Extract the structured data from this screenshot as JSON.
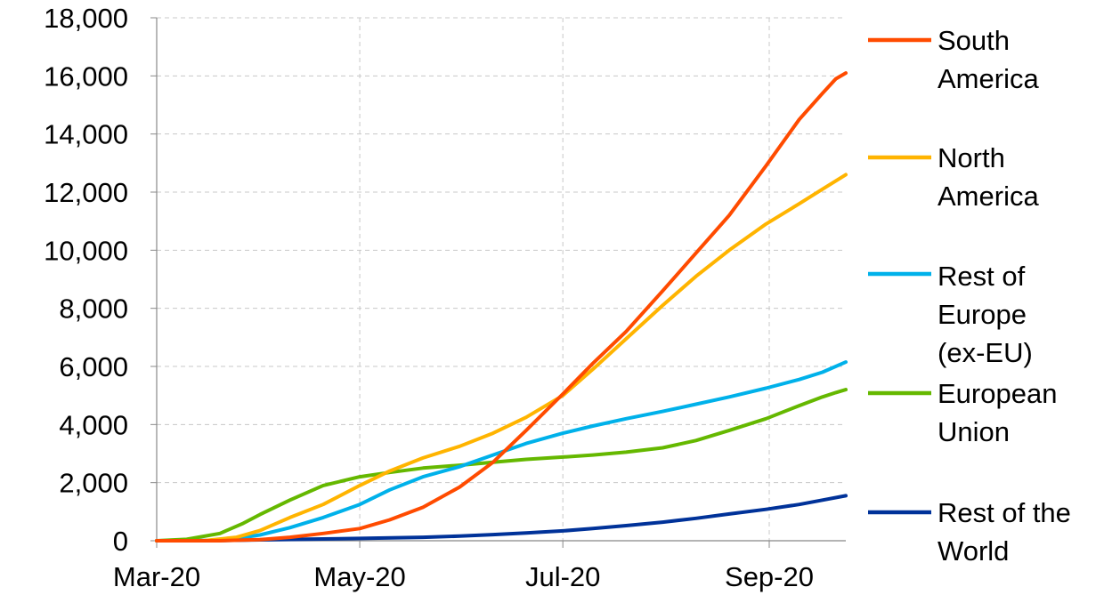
{
  "chart_data": {
    "type": "line",
    "title": "",
    "xlabel": "",
    "ylabel": "",
    "x_range": [
      "2020-03-01",
      "2020-09-24"
    ],
    "ylim": [
      0,
      18000
    ],
    "yticks": [
      0,
      2000,
      4000,
      6000,
      8000,
      10000,
      12000,
      14000,
      16000,
      18000
    ],
    "ytick_labels": [
      "0",
      "2,000",
      "4,000",
      "6,000",
      "8,000",
      "10,000",
      "12,000",
      "14,000",
      "16,000",
      "18,000"
    ],
    "xticks": [
      {
        "date": "2020-03-01",
        "label": "Mar-20"
      },
      {
        "date": "2020-05-01",
        "label": "May-20"
      },
      {
        "date": "2020-07-01",
        "label": "Jul-20"
      },
      {
        "date": "2020-09-01",
        "label": "Sep-20"
      }
    ],
    "grid": true,
    "legend_position": "right",
    "series": [
      {
        "name": "South America",
        "label_lines": [
          "South",
          "America"
        ],
        "color": "#FF4B00",
        "points": [
          [
            "2020-03-01",
            0
          ],
          [
            "2020-03-20",
            0
          ],
          [
            "2020-04-01",
            40
          ],
          [
            "2020-04-10",
            120
          ],
          [
            "2020-04-20",
            250
          ],
          [
            "2020-05-01",
            420
          ],
          [
            "2020-05-10",
            720
          ],
          [
            "2020-05-20",
            1150
          ],
          [
            "2020-05-31",
            1850
          ],
          [
            "2020-06-10",
            2700
          ],
          [
            "2020-06-20",
            3800
          ],
          [
            "2020-07-01",
            5050
          ],
          [
            "2020-07-10",
            6100
          ],
          [
            "2020-07-20",
            7200
          ],
          [
            "2020-07-31",
            8600
          ],
          [
            "2020-08-10",
            9900
          ],
          [
            "2020-08-20",
            11200
          ],
          [
            "2020-08-31",
            12900
          ],
          [
            "2020-09-10",
            14500
          ],
          [
            "2020-09-17",
            15400
          ],
          [
            "2020-09-21",
            15900
          ],
          [
            "2020-09-24",
            16100
          ]
        ]
      },
      {
        "name": "North America",
        "label_lines": [
          "North",
          "America"
        ],
        "color": "#FFB400",
        "points": [
          [
            "2020-03-01",
            0
          ],
          [
            "2020-03-15",
            0
          ],
          [
            "2020-03-25",
            120
          ],
          [
            "2020-04-01",
            350
          ],
          [
            "2020-04-10",
            800
          ],
          [
            "2020-04-20",
            1250
          ],
          [
            "2020-05-01",
            1900
          ],
          [
            "2020-05-10",
            2400
          ],
          [
            "2020-05-20",
            2850
          ],
          [
            "2020-05-31",
            3250
          ],
          [
            "2020-06-10",
            3700
          ],
          [
            "2020-06-20",
            4250
          ],
          [
            "2020-07-01",
            5000
          ],
          [
            "2020-07-10",
            5900
          ],
          [
            "2020-07-20",
            6950
          ],
          [
            "2020-07-31",
            8100
          ],
          [
            "2020-08-10",
            9100
          ],
          [
            "2020-08-20",
            10000
          ],
          [
            "2020-08-31",
            10900
          ],
          [
            "2020-09-10",
            11600
          ],
          [
            "2020-09-17",
            12100
          ],
          [
            "2020-09-24",
            12600
          ]
        ]
      },
      {
        "name": "Rest of Europe (ex-EU)",
        "label_lines": [
          "Rest of",
          "Europe",
          "(ex-EU)"
        ],
        "color": "#00B1EA",
        "points": [
          [
            "2020-03-01",
            0
          ],
          [
            "2020-03-15",
            0
          ],
          [
            "2020-03-25",
            80
          ],
          [
            "2020-04-01",
            200
          ],
          [
            "2020-04-10",
            450
          ],
          [
            "2020-04-20",
            800
          ],
          [
            "2020-05-01",
            1250
          ],
          [
            "2020-05-10",
            1750
          ],
          [
            "2020-05-20",
            2200
          ],
          [
            "2020-05-31",
            2550
          ],
          [
            "2020-06-10",
            2950
          ],
          [
            "2020-06-20",
            3350
          ],
          [
            "2020-07-01",
            3700
          ],
          [
            "2020-07-10",
            3950
          ],
          [
            "2020-07-20",
            4200
          ],
          [
            "2020-07-31",
            4450
          ],
          [
            "2020-08-10",
            4700
          ],
          [
            "2020-08-20",
            4950
          ],
          [
            "2020-08-31",
            5250
          ],
          [
            "2020-09-10",
            5550
          ],
          [
            "2020-09-17",
            5800
          ],
          [
            "2020-09-24",
            6150
          ]
        ]
      },
      {
        "name": "European Union",
        "label_lines": [
          "European",
          "Union"
        ],
        "color": "#65B800",
        "points": [
          [
            "2020-03-01",
            0
          ],
          [
            "2020-03-10",
            50
          ],
          [
            "2020-03-20",
            250
          ],
          [
            "2020-03-27",
            600
          ],
          [
            "2020-04-01",
            900
          ],
          [
            "2020-04-10",
            1400
          ],
          [
            "2020-04-20",
            1900
          ],
          [
            "2020-05-01",
            2200
          ],
          [
            "2020-05-10",
            2350
          ],
          [
            "2020-05-20",
            2500
          ],
          [
            "2020-05-31",
            2600
          ],
          [
            "2020-06-10",
            2700
          ],
          [
            "2020-06-20",
            2800
          ],
          [
            "2020-07-01",
            2880
          ],
          [
            "2020-07-10",
            2950
          ],
          [
            "2020-07-20",
            3050
          ],
          [
            "2020-07-31",
            3200
          ],
          [
            "2020-08-10",
            3450
          ],
          [
            "2020-08-20",
            3800
          ],
          [
            "2020-08-31",
            4200
          ],
          [
            "2020-09-10",
            4650
          ],
          [
            "2020-09-17",
            4950
          ],
          [
            "2020-09-21",
            5100
          ],
          [
            "2020-09-24",
            5200
          ]
        ]
      },
      {
        "name": "Rest of the World",
        "label_lines": [
          "Rest of the",
          "World"
        ],
        "color": "#003299",
        "points": [
          [
            "2020-03-01",
            0
          ],
          [
            "2020-03-20",
            10
          ],
          [
            "2020-04-01",
            30
          ],
          [
            "2020-04-20",
            60
          ],
          [
            "2020-05-01",
            80
          ],
          [
            "2020-05-20",
            120
          ],
          [
            "2020-05-31",
            160
          ],
          [
            "2020-06-10",
            210
          ],
          [
            "2020-06-20",
            270
          ],
          [
            "2020-07-01",
            340
          ],
          [
            "2020-07-10",
            420
          ],
          [
            "2020-07-20",
            520
          ],
          [
            "2020-07-31",
            640
          ],
          [
            "2020-08-10",
            770
          ],
          [
            "2020-08-20",
            920
          ],
          [
            "2020-08-31",
            1080
          ],
          [
            "2020-09-10",
            1250
          ],
          [
            "2020-09-17",
            1400
          ],
          [
            "2020-09-24",
            1550
          ]
        ]
      }
    ]
  }
}
